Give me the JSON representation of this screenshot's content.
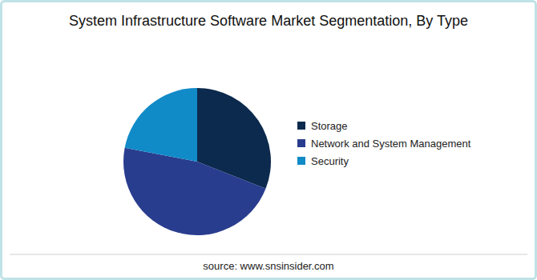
{
  "chart_data": {
    "type": "pie",
    "title": "System Infrastructure Software Market Segmentation, By Type",
    "categories": [
      "Storage",
      "Network and System Management",
      "Security"
    ],
    "values": [
      31,
      47,
      22
    ],
    "colors": [
      "#0c2a4d",
      "#293d8e",
      "#118ac8"
    ],
    "legend": "right",
    "annotations": [
      "source: www.snsinsider.com"
    ]
  }
}
